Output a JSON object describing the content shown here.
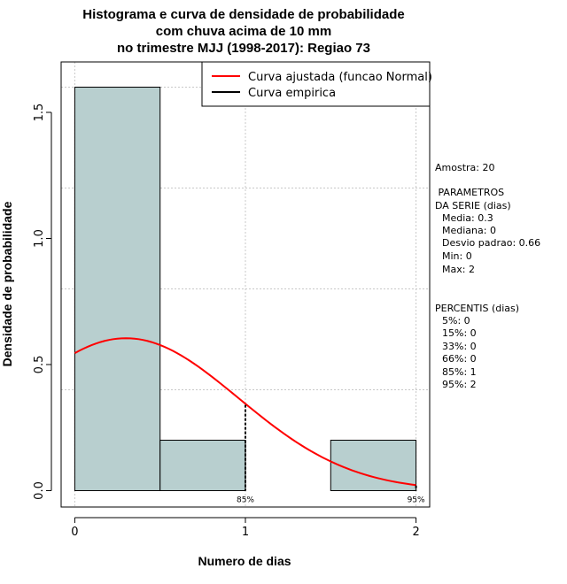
{
  "chart_data": {
    "type": "bar",
    "title": [
      "Histograma e curva de densidade de probabilidade",
      "com chuva acima de 10 mm",
      "no trimestre MJJ (1998-2017): Regiao 73"
    ],
    "xlabel": "Numero de dias",
    "ylabel": "Densidade de probabilidade",
    "xlim": [
      -0.08,
      2.08
    ],
    "ylim": [
      -0.065,
      1.7
    ],
    "xticks": [
      0,
      1,
      2
    ],
    "xtick_labels": [
      "0",
      "1",
      "2"
    ],
    "yticks": [
      0.0,
      0.5,
      1.0,
      1.5
    ],
    "ytick_labels": [
      "0.0",
      "0.5",
      "1.0",
      "1.5"
    ],
    "grid_x": [
      0,
      1,
      2
    ],
    "grid_y": [
      0.4,
      0.8,
      1.2,
      1.6
    ],
    "bars": [
      {
        "x0": 0.0,
        "x1": 0.5,
        "value": 1.6
      },
      {
        "x0": 0.5,
        "x1": 1.0,
        "value": 0.2
      },
      {
        "x0": 1.0,
        "x1": 1.5,
        "value": 0.0
      },
      {
        "x0": 1.5,
        "x1": 2.0,
        "value": 0.2
      }
    ],
    "bar_color": "#b8cfcf",
    "fitted_curve": {
      "name": "Curva ajustada (funcao Normal)",
      "distribution": "normal",
      "mean": 0.3,
      "sd": 0.66,
      "x_range": [
        0,
        2
      ],
      "color": "#ff0000"
    },
    "empirical_curve": {
      "name": "Curva empirica",
      "color": "#000000"
    },
    "percentile_markers": [
      {
        "label": "85%",
        "x": 1.0,
        "y": 0.34
      },
      {
        "label": "95%",
        "x": 2.0,
        "y": 0.02
      }
    ],
    "legend_position": "top-right"
  },
  "side_panel": {
    "sample": "Amostra: 20",
    "params_header_1": " PARAMETROS",
    "params_header_2": "DA SERIE (dias)",
    "params": [
      "Media: 0.3",
      "Mediana: 0",
      "Desvio padrao: 0.66",
      "Min: 0",
      "Max: 2"
    ],
    "percentis_header": "PERCENTIS (dias)",
    "percentis": [
      "5%: 0",
      "15%: 0",
      "33%: 0",
      "66%: 0",
      "85%: 1",
      "95%: 2"
    ]
  }
}
